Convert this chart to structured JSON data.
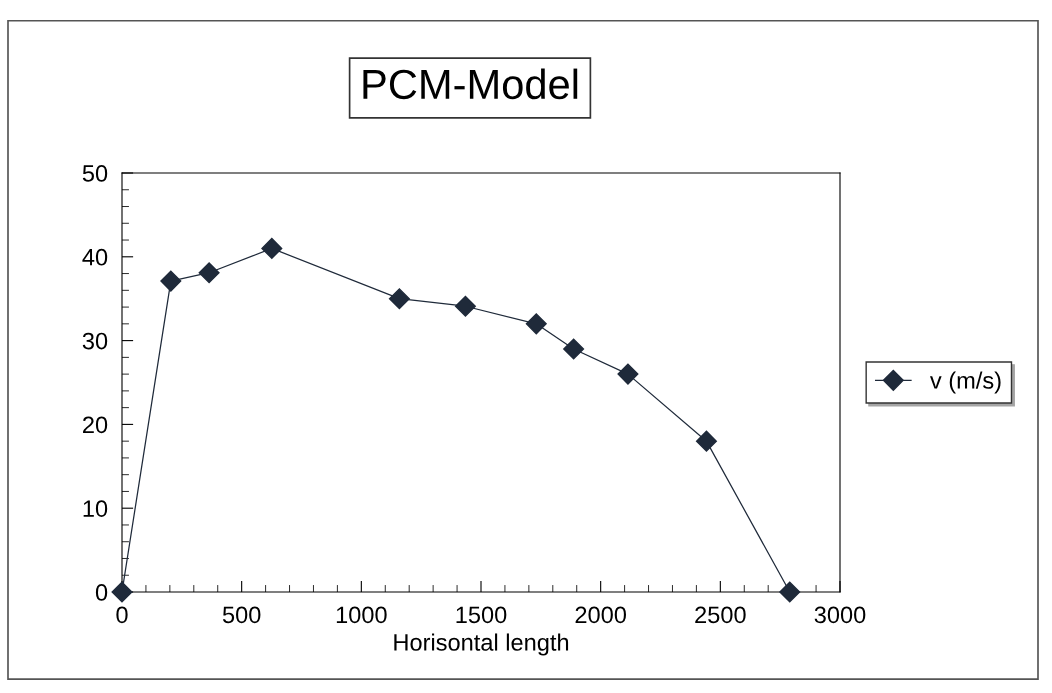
{
  "chart_data": {
    "type": "line",
    "title": "PCM-Model",
    "xlabel": "Horisontal length",
    "x": [
      0,
      204,
      364,
      626,
      1159,
      1435,
      1731,
      1887,
      2114,
      2442,
      2790
    ],
    "series": [
      {
        "name": "v (m/s)",
        "color": "#1f2a3a",
        "values": [
          0,
          37.1,
          38.1,
          41.0,
          35.0,
          34.1,
          32.0,
          29.0,
          26.0,
          18.0,
          0
        ]
      }
    ],
    "xlim": [
      0,
      3000
    ],
    "xticks": [
      0,
      500,
      1000,
      1500,
      2000,
      2500,
      3000
    ],
    "ylim": [
      0,
      50
    ],
    "yticks": [
      0,
      10,
      20,
      30,
      40,
      50
    ],
    "marker": "diamond",
    "line_style": "solid",
    "grid": false,
    "legend": "right"
  }
}
